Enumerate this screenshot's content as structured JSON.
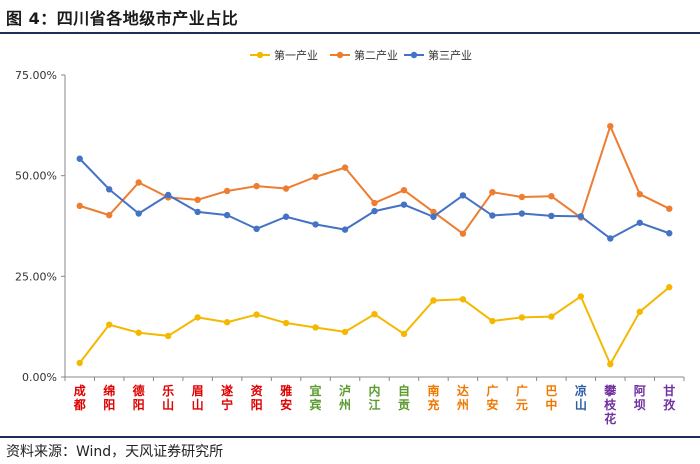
{
  "header": {
    "title": "图 4：四川省各地级市产业占比"
  },
  "footer": {
    "source": "资料来源：Wind，天风证券研究所"
  },
  "chart_data": {
    "type": "line",
    "title": "",
    "xlabel": "",
    "ylabel": "",
    "ylim": [
      0,
      75
    ],
    "yticks": [
      "0.00%",
      "25.00%",
      "50.00%",
      "75.00%"
    ],
    "grid": false,
    "legend_position": "top",
    "categories": [
      "成都",
      "绵阳",
      "德阳",
      "乐山",
      "眉山",
      "遂宁",
      "资阳",
      "雅安",
      "宜宾",
      "泸州",
      "内江",
      "自贡",
      "南充",
      "达州",
      "广安",
      "广元",
      "巴中",
      "凉山",
      "攀枝花",
      "阿坝",
      "甘孜"
    ],
    "category_colors": [
      "#e00000",
      "#e00000",
      "#e00000",
      "#e00000",
      "#e00000",
      "#e00000",
      "#e00000",
      "#e00000",
      "#5a9a2e",
      "#5a9a2e",
      "#5a9a2e",
      "#5a9a2e",
      "#f07800",
      "#f07800",
      "#f07800",
      "#f07800",
      "#f07800",
      "#2a5aa8",
      "#7030a0",
      "#7030a0",
      "#7030a0"
    ],
    "series": [
      {
        "name": "第一产业",
        "color": "#f5b800",
        "values": [
          3.5,
          13.0,
          11.0,
          10.2,
          14.8,
          13.6,
          15.5,
          13.4,
          12.3,
          11.2,
          15.6,
          10.7,
          19.0,
          19.3,
          13.9,
          14.8,
          15.0,
          20.0,
          3.2,
          16.2,
          22.3
        ]
      },
      {
        "name": "第二产业",
        "color": "#ed7d31",
        "values": [
          42.5,
          40.2,
          48.3,
          44.6,
          44.0,
          46.2,
          47.4,
          46.8,
          49.7,
          52.0,
          43.2,
          46.4,
          41.0,
          35.6,
          45.9,
          44.7,
          44.9,
          39.6,
          62.3,
          45.4,
          41.8
        ]
      },
      {
        "name": "第三产业",
        "color": "#4472c4",
        "values": [
          54.2,
          46.6,
          40.6,
          45.2,
          41.0,
          40.2,
          36.8,
          39.8,
          37.9,
          36.6,
          41.2,
          42.8,
          39.8,
          45.1,
          40.1,
          40.6,
          40.0,
          39.9,
          34.4,
          38.3,
          35.7
        ]
      }
    ]
  }
}
